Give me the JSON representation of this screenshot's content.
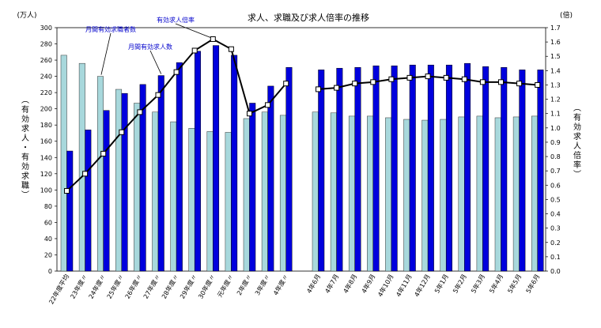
{
  "chart_data": {
    "type": "bar+line",
    "title": "求人、求職及び求人倍率の推移",
    "left_unit": "(万人)",
    "right_unit": "(倍)",
    "left_axis_label": "有効求人・有効求職",
    "right_axis_label": "有効求人倍率",
    "left_ylim": [
      0,
      300
    ],
    "left_ticks": [
      "0",
      "20",
      "40",
      "60",
      "80",
      "100",
      "120",
      "140",
      "160",
      "180",
      "200",
      "220",
      "240",
      "260",
      "280",
      "300"
    ],
    "right_ylim": [
      0,
      1.7
    ],
    "right_ticks": [
      "0.0",
      "0.1",
      "0.2",
      "0.3",
      "0.4",
      "0.5",
      "0.6",
      "0.7",
      "0.8",
      "0.9",
      "1.0",
      "1.1",
      "1.2",
      "1.3",
      "1.4",
      "1.5",
      "1.6",
      "1.7"
    ],
    "categories_annual": [
      "22年度平均",
      "23年度〃",
      "24年度〃",
      "25年度〃",
      "26年度〃",
      "27年度〃",
      "28年度〃",
      "29年度〃",
      "30年度〃",
      "元年度〃",
      "2年度〃",
      "3年度〃",
      "4年度〃"
    ],
    "categories_monthly": [
      "4年6月",
      "4年7月",
      "4年8月",
      "4年9月",
      "4年10月",
      "4年11月",
      "4年12月",
      "5年1月",
      "5年2月",
      "5年3月",
      "5年4月",
      "5年5月",
      "5年6月"
    ],
    "series": [
      {
        "name": "月間有効求職者数",
        "color": "#a8d8dc",
        "annual": [
          266,
          256,
          240,
          224,
          207,
          196,
          184,
          176,
          172,
          171,
          188,
          196,
          192
        ],
        "monthly": [
          196,
          195,
          191,
          191,
          189,
          187,
          186,
          187,
          190,
          191,
          189,
          190,
          191
        ]
      },
      {
        "name": "月間有効求人数",
        "color": "#0000dd",
        "annual": [
          148,
          174,
          198,
          219,
          230,
          241,
          257,
          271,
          278,
          266,
          207,
          228,
          251
        ],
        "monthly": [
          248,
          250,
          251,
          253,
          253,
          254,
          254,
          254,
          256,
          252,
          251,
          248,
          248
        ]
      },
      {
        "name": "有効求人倍率",
        "color": "#000000",
        "annual": [
          0.56,
          0.68,
          0.82,
          0.97,
          1.11,
          1.23,
          1.39,
          1.54,
          1.62,
          1.55,
          1.1,
          1.16,
          1.31
        ],
        "monthly": [
          1.27,
          1.28,
          1.31,
          1.32,
          1.34,
          1.35,
          1.36,
          1.35,
          1.34,
          1.32,
          1.32,
          1.31,
          1.3
        ]
      }
    ],
    "callouts": {
      "seekers": "月間有効求職者数",
      "openings": "月間有効求人数",
      "ratio": "有効求人倍率"
    }
  }
}
